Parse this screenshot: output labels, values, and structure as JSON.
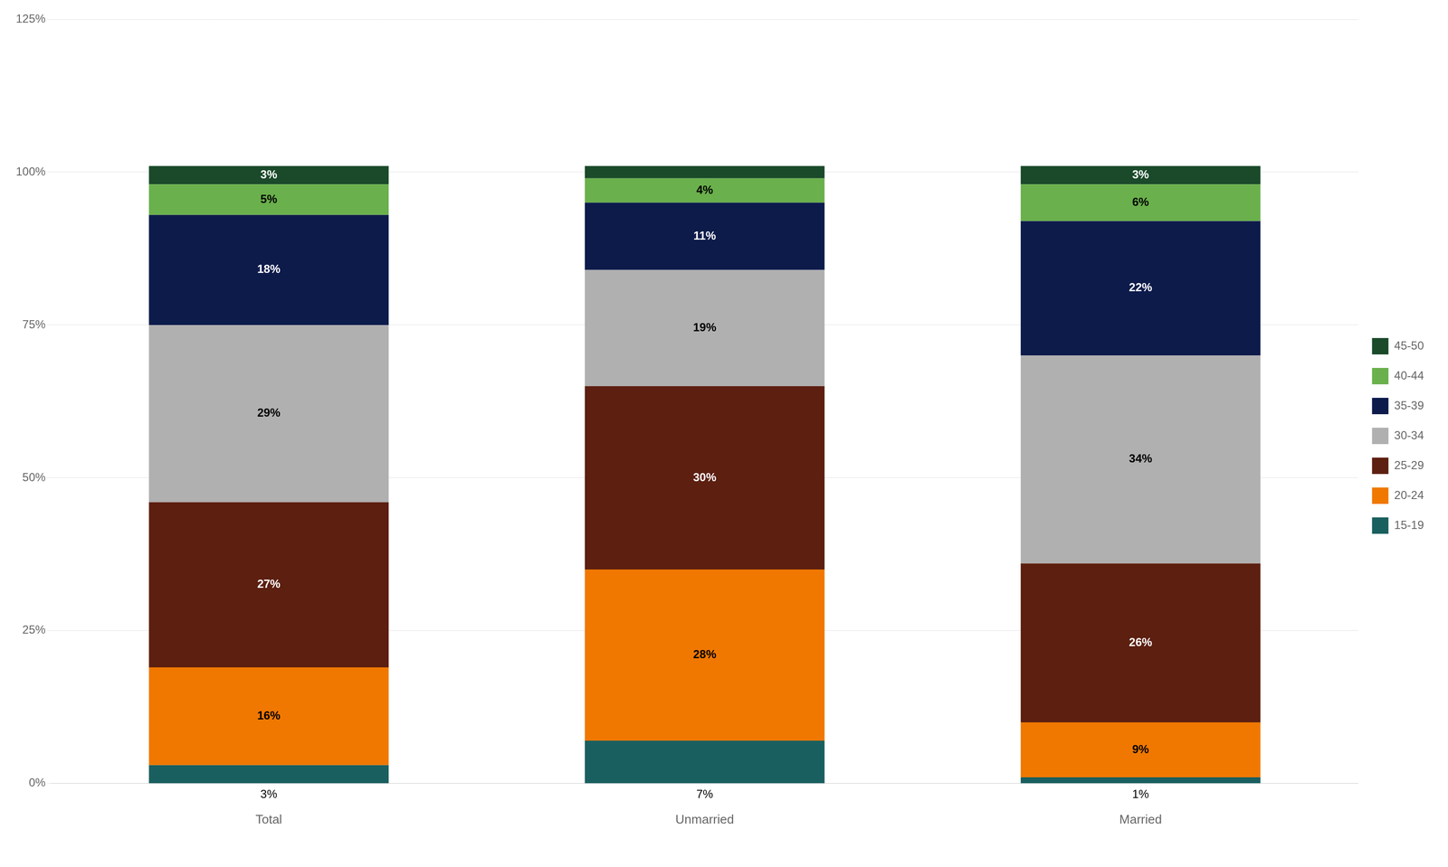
{
  "chart_data": {
    "type": "bar",
    "stacked": true,
    "categories": [
      "Total",
      "Unmarried",
      "Married"
    ],
    "series": [
      {
        "name": "15-19",
        "color": "#1a5f5f",
        "values": [
          3,
          7,
          1
        ],
        "value_labels": [
          "3%",
          "7%",
          "1%"
        ]
      },
      {
        "name": "20-24",
        "color": "#f07800",
        "values": [
          16,
          28,
          9
        ],
        "value_labels": [
          "16%",
          "28%",
          "9%"
        ]
      },
      {
        "name": "25-29",
        "color": "#5c1f10",
        "values": [
          27,
          30,
          26
        ],
        "value_labels": [
          "27%",
          "30%",
          "26%"
        ]
      },
      {
        "name": "30-34",
        "color": "#b0b0b0",
        "values": [
          29,
          19,
          34
        ],
        "value_labels": [
          "29%",
          "19%",
          "34%"
        ]
      },
      {
        "name": "35-39",
        "color": "#0d1b4b",
        "values": [
          18,
          11,
          22
        ],
        "value_labels": [
          "18%",
          "11%",
          "22%"
        ]
      },
      {
        "name": "40-44",
        "color": "#6ab04c",
        "values": [
          5,
          4,
          6
        ],
        "value_labels": [
          "5%",
          "4%",
          "6%"
        ]
      },
      {
        "name": "45-50",
        "color": "#1a4a2a",
        "values": [
          3,
          2,
          3
        ],
        "value_labels": [
          "3%",
          null,
          "3%"
        ]
      }
    ],
    "ylim": [
      0,
      125
    ],
    "yticks": [
      {
        "value": 0,
        "label": "0%"
      },
      {
        "value": 25,
        "label": "25%"
      },
      {
        "value": 50,
        "label": "50%"
      },
      {
        "value": 75,
        "label": "75%"
      },
      {
        "value": 100,
        "label": "100%"
      },
      {
        "value": 125,
        "label": "125%"
      }
    ],
    "grid": true,
    "legend": "right",
    "data_labels": true
  }
}
